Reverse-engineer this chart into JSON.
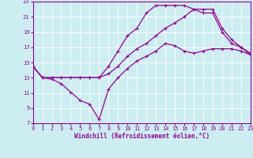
{
  "xlabel": "Windchill (Refroidissement éolien,°C)",
  "xlim": [
    0,
    23
  ],
  "ylim": [
    7,
    23
  ],
  "xticks": [
    0,
    1,
    2,
    3,
    4,
    5,
    6,
    7,
    8,
    9,
    10,
    11,
    12,
    13,
    14,
    15,
    16,
    17,
    18,
    19,
    20,
    21,
    22,
    23
  ],
  "yticks": [
    7,
    9,
    11,
    13,
    15,
    17,
    19,
    21,
    23
  ],
  "background_color": "#cceef0",
  "line_color": "#990099",
  "line1_x": [
    0,
    1,
    2,
    3,
    4,
    5,
    6,
    7,
    8,
    9,
    10,
    11,
    12,
    13,
    14,
    15,
    16,
    17,
    18,
    19,
    20,
    21,
    22,
    23
  ],
  "line1_y": [
    14.5,
    13.0,
    12.8,
    12.2,
    11.1,
    10.0,
    9.5,
    7.5,
    11.5,
    13.0,
    14.2,
    15.2,
    15.8,
    16.5,
    17.5,
    17.2,
    16.5,
    16.2,
    16.5,
    16.8,
    16.8,
    16.8,
    16.5,
    16.0
  ],
  "line2_x": [
    0,
    1,
    2,
    3,
    4,
    5,
    6,
    7,
    8,
    9,
    10,
    11,
    12,
    13,
    14,
    15,
    16,
    17,
    18,
    19,
    20,
    21,
    22,
    23
  ],
  "line2_y": [
    14.5,
    13.0,
    13.0,
    13.0,
    13.0,
    13.0,
    13.0,
    13.0,
    14.5,
    16.5,
    18.5,
    19.5,
    21.5,
    22.5,
    22.5,
    22.5,
    22.5,
    22.0,
    21.5,
    21.5,
    19.0,
    17.5,
    17.0,
    16.2
  ],
  "line3_x": [
    0,
    1,
    2,
    3,
    4,
    5,
    6,
    7,
    8,
    9,
    10,
    11,
    12,
    13,
    14,
    15,
    16,
    17,
    18,
    19,
    20,
    21,
    22,
    23
  ],
  "line3_y": [
    14.5,
    13.0,
    13.0,
    13.0,
    13.0,
    13.0,
    13.0,
    13.0,
    13.5,
    14.5,
    15.8,
    16.8,
    17.5,
    18.5,
    19.5,
    20.2,
    21.0,
    22.0,
    22.0,
    22.0,
    19.5,
    18.0,
    17.0,
    16.0
  ],
  "marker": "+",
  "markersize": 3,
  "linewidth": 0.9,
  "tick_fontsize": 5,
  "xlabel_fontsize": 5.5
}
